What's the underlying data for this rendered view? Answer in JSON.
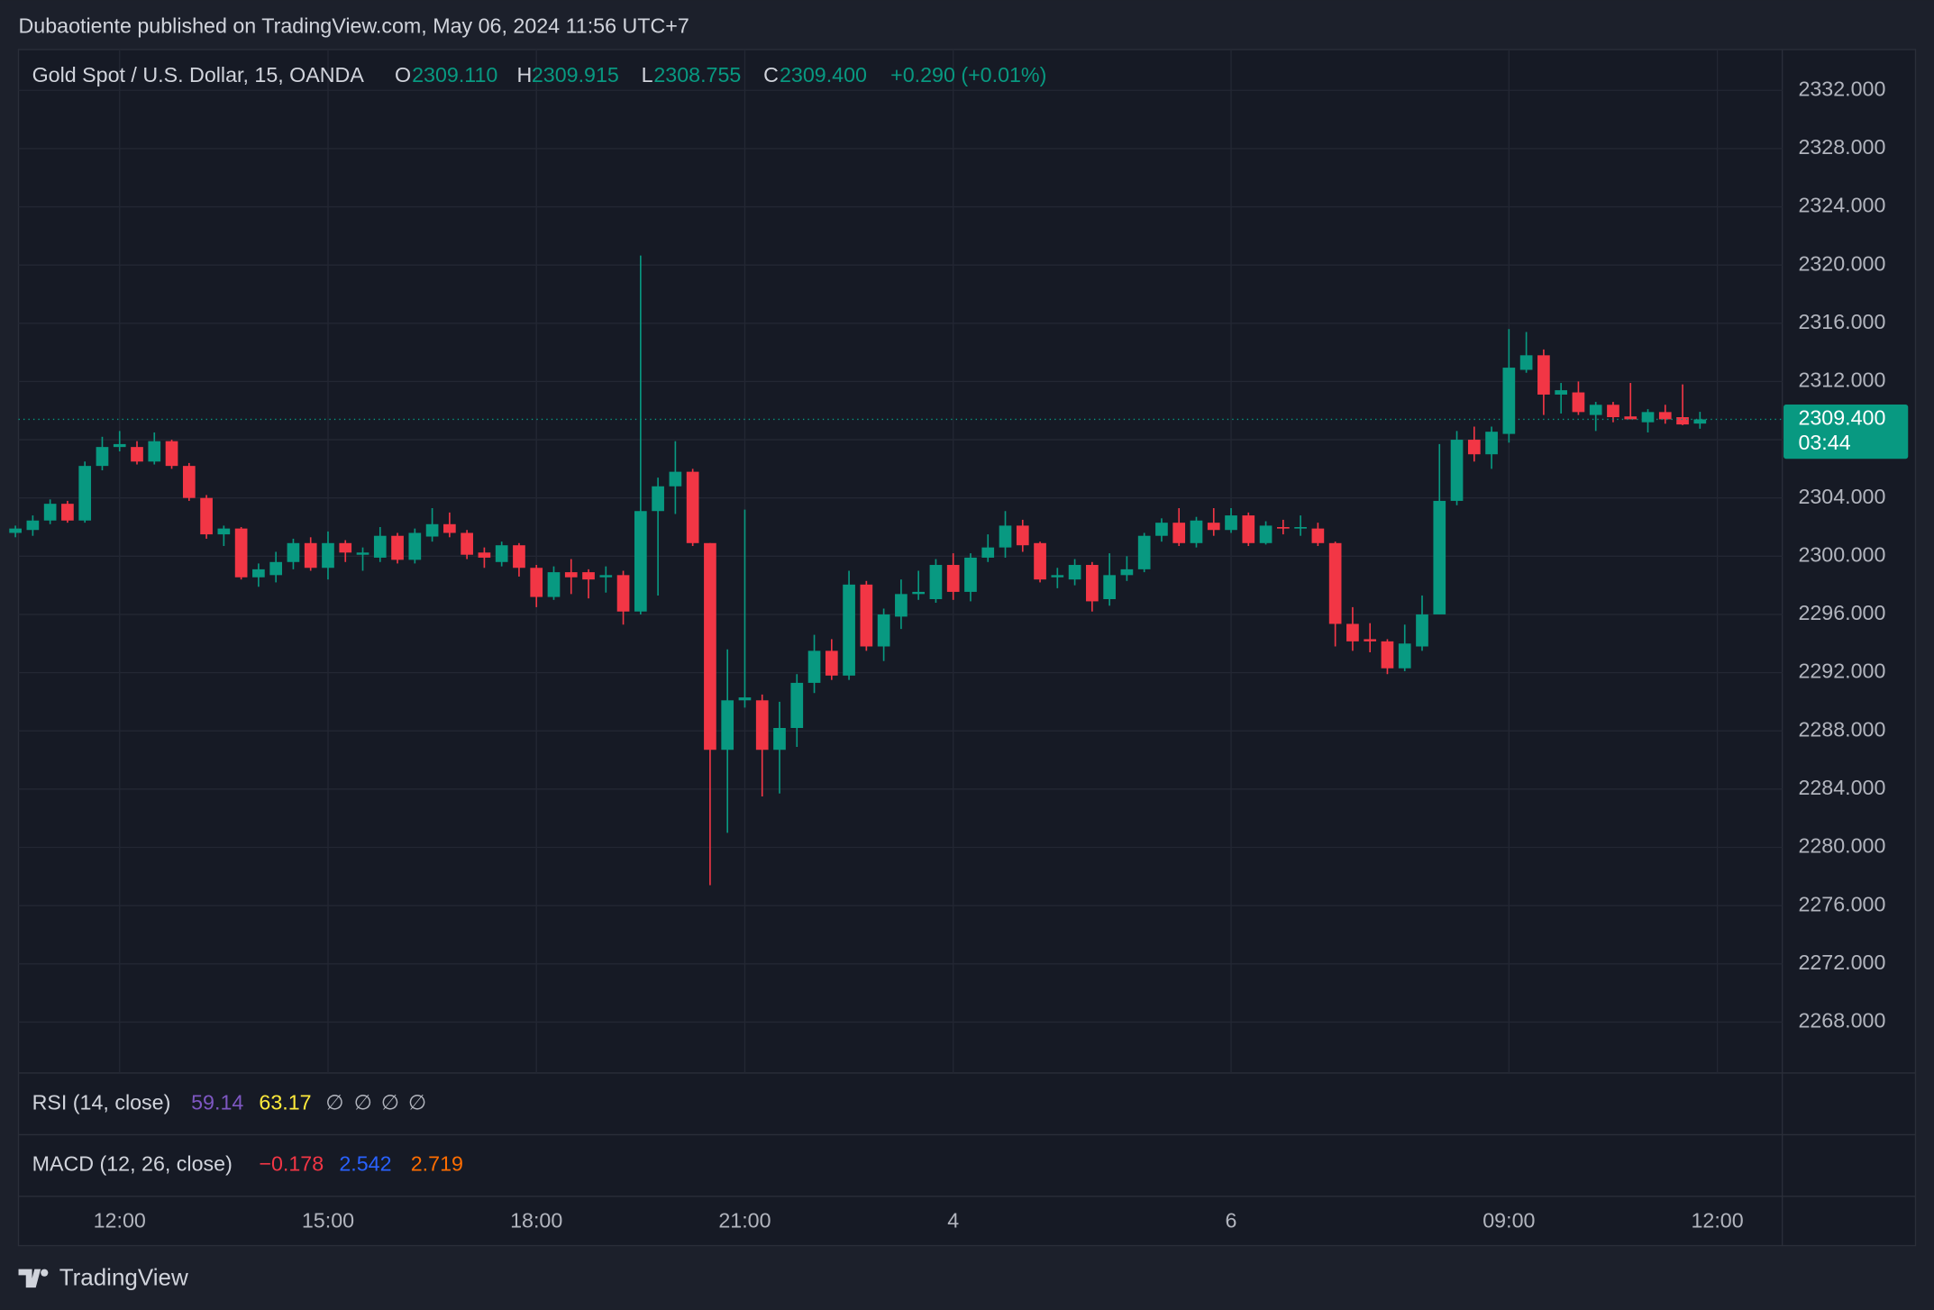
{
  "chart_data": {
    "type": "candlestick",
    "published": "Dubaotiente published on TradingView.com, May 06, 2024 11:56 UTC+7",
    "title": "Gold Spot / U.S. Dollar, 15, OANDA",
    "ohlc_legend": [
      {
        "label": "O",
        "value": "2309.110"
      },
      {
        "label": "H",
        "value": "2309.915"
      },
      {
        "label": "L",
        "value": "2308.755"
      },
      {
        "label": "C",
        "value": "2309.400"
      }
    ],
    "change": "+0.290 (+0.01%)",
    "up_color": "#089981",
    "down_color": "#f23645",
    "categories": [
      null,
      null,
      null,
      null,
      null,
      null,
      "12:00",
      null,
      null,
      null,
      null,
      null,
      null,
      null,
      null,
      null,
      null,
      null,
      "15:00",
      null,
      null,
      null,
      null,
      null,
      null,
      null,
      null,
      null,
      null,
      null,
      "18:00",
      null,
      null,
      null,
      null,
      null,
      null,
      null,
      null,
      null,
      null,
      null,
      "21:00",
      null,
      null,
      null,
      null,
      null,
      null,
      null,
      null,
      null,
      null,
      null,
      "4",
      null,
      null,
      null,
      null,
      null,
      null,
      null,
      null,
      null,
      null,
      null,
      null,
      null,
      null,
      null,
      "6",
      null,
      null,
      null,
      null,
      null,
      null,
      null,
      null,
      null,
      null,
      null,
      null,
      null,
      null,
      null,
      "09:00",
      null,
      null,
      null,
      null,
      null,
      null,
      null,
      null,
      null,
      null,
      null,
      "12:00"
    ],
    "open": [
      2301.6,
      2301.8,
      2302.45,
      2303.6,
      2302.45,
      2306.2,
      2307.5,
      2307.5,
      2306.5,
      2307.9,
      2306.2,
      2304.0,
      2301.5,
      2301.9,
      2298.55,
      2298.7,
      2299.6,
      2300.9,
      2299.2,
      2300.9,
      2300.1,
      2299.9,
      2301.4,
      2299.75,
      2301.35,
      2302.2,
      2301.6,
      2300.25,
      2299.6,
      2300.75,
      2299.2,
      2297.2,
      2298.9,
      2298.9,
      2298.55,
      2298.7,
      2296.2,
      2303.1,
      2304.8,
      2305.8,
      2300.9,
      2286.7,
      2290.1,
      2290.1,
      2286.7,
      2288.2,
      2291.3,
      2293.5,
      2291.8,
      2298.05,
      2293.8,
      2295.85,
      2297.4,
      2297.05,
      2299.4,
      2297.55,
      2299.9,
      2300.6,
      2302.1,
      2300.9,
      2298.55,
      2298.4,
      2299.4,
      2297.05,
      2298.7,
      2299.1,
      2301.4,
      2302.3,
      2300.9,
      2302.3,
      2301.8,
      2302.8,
      2300.9,
      2302.0,
      2301.9,
      2301.9,
      2300.9,
      2295.35,
      2294.3,
      2294.15,
      2292.3,
      2293.8,
      2296.0,
      2303.8,
      2308.0,
      2307.0,
      2308.4,
      2312.8,
      2313.8,
      2311.1,
      2311.25,
      2309.7,
      2310.4,
      2309.6,
      2309.2,
      2309.9,
      2309.55,
      2309.11,
      null
    ],
    "high": [
      2302.1,
      2302.8,
      2303.9,
      2303.8,
      2306.5,
      2308.2,
      2308.6,
      2307.9,
      2308.5,
      2308.0,
      2306.4,
      2304.2,
      2302.1,
      2302.0,
      2299.5,
      2300.3,
      2301.2,
      2301.3,
      2301.7,
      2301.1,
      2300.6,
      2302.0,
      2301.6,
      2301.9,
      2303.3,
      2303.0,
      2301.8,
      2300.6,
      2301.0,
      2300.9,
      2299.4,
      2299.3,
      2299.8,
      2299.1,
      2299.3,
      2299.0,
      2320.65,
      2305.4,
      2307.9,
      2306.0,
      2300.9,
      2293.6,
      2303.2,
      2290.5,
      2290.0,
      2291.9,
      2294.6,
      2294.3,
      2299.0,
      2298.3,
      2296.4,
      2298.4,
      2299.0,
      2299.8,
      2300.2,
      2300.2,
      2301.5,
      2303.1,
      2302.5,
      2301.0,
      2299.2,
      2299.8,
      2299.6,
      2300.2,
      2300.0,
      2301.6,
      2302.6,
      2303.3,
      2302.7,
      2303.3,
      2303.3,
      2303.0,
      2302.4,
      2302.5,
      2302.8,
      2302.3,
      2301.0,
      2296.5,
      2295.4,
      2294.3,
      2295.3,
      2297.3,
      2307.7,
      2308.6,
      2308.9,
      2308.9,
      2315.6,
      2315.4,
      2314.2,
      2311.9,
      2312.0,
      2310.6,
      2310.6,
      2311.9,
      2310.1,
      2310.4,
      2311.8,
      2309.915,
      null
    ],
    "low": [
      2301.3,
      2301.4,
      2302.2,
      2302.3,
      2302.3,
      2305.9,
      2307.2,
      2306.3,
      2306.3,
      2306.0,
      2303.8,
      2301.2,
      2300.7,
      2298.4,
      2297.9,
      2298.2,
      2299.1,
      2299.0,
      2298.4,
      2299.6,
      2299.0,
      2299.6,
      2299.5,
      2299.5,
      2301.0,
      2301.3,
      2299.8,
      2299.2,
      2299.3,
      2298.6,
      2296.5,
      2297.0,
      2297.4,
      2297.1,
      2297.5,
      2295.3,
      2296.0,
      2297.3,
      2302.9,
      2300.7,
      2277.4,
      2281.0,
      2289.6,
      2283.5,
      2283.7,
      2286.9,
      2290.6,
      2291.5,
      2291.5,
      2293.5,
      2292.8,
      2295.0,
      2297.0,
      2296.8,
      2297.0,
      2296.9,
      2299.6,
      2299.9,
      2300.3,
      2298.2,
      2297.8,
      2298.0,
      2296.2,
      2296.6,
      2298.3,
      2298.9,
      2301.0,
      2300.7,
      2300.6,
      2301.4,
      2301.6,
      2300.7,
      2300.8,
      2301.5,
      2301.4,
      2300.7,
      2293.8,
      2293.5,
      2293.4,
      2291.9,
      2292.1,
      2293.5,
      2296.0,
      2303.5,
      2306.5,
      2306.0,
      2307.8,
      2312.6,
      2309.7,
      2309.8,
      2309.7,
      2308.6,
      2309.2,
      2309.4,
      2308.5,
      2309.1,
      2309.0,
      2308.755,
      null
    ],
    "close": [
      2301.9,
      2302.45,
      2303.6,
      2302.45,
      2306.2,
      2307.5,
      2307.7,
      2306.5,
      2307.9,
      2306.2,
      2304.0,
      2301.5,
      2301.9,
      2298.55,
      2299.1,
      2299.6,
      2300.9,
      2299.2,
      2300.9,
      2300.25,
      2300.25,
      2301.4,
      2299.75,
      2301.6,
      2302.2,
      2301.6,
      2300.1,
      2299.9,
      2300.75,
      2299.2,
      2297.2,
      2298.9,
      2298.55,
      2298.4,
      2298.7,
      2296.2,
      2303.1,
      2304.8,
      2305.8,
      2300.9,
      2286.7,
      2290.1,
      2290.3,
      2286.7,
      2288.2,
      2291.3,
      2293.5,
      2291.8,
      2298.05,
      2293.8,
      2296.0,
      2297.4,
      2297.55,
      2299.4,
      2297.55,
      2299.9,
      2300.6,
      2302.1,
      2300.75,
      2298.4,
      2298.7,
      2299.4,
      2296.9,
      2298.7,
      2299.1,
      2301.4,
      2302.3,
      2300.9,
      2302.45,
      2301.8,
      2302.8,
      2300.9,
      2302.1,
      2301.9,
      2302.0,
      2300.9,
      2295.35,
      2294.15,
      2294.15,
      2292.3,
      2294.0,
      2296.0,
      2303.8,
      2308.0,
      2307.0,
      2308.55,
      2312.95,
      2313.8,
      2311.1,
      2311.4,
      2309.9,
      2310.4,
      2309.55,
      2309.4,
      2309.9,
      2309.4,
      2309.05,
      2309.4,
      null
    ],
    "ylim": [
      2264.5,
      2334.8
    ],
    "yticks": [
      {
        "value": 2268,
        "label": "2268.000"
      },
      {
        "value": 2272,
        "label": "2272.000"
      },
      {
        "value": 2276,
        "label": "2276.000"
      },
      {
        "value": 2280,
        "label": "2280.000"
      },
      {
        "value": 2284,
        "label": "2284.000"
      },
      {
        "value": 2288,
        "label": "2288.000"
      },
      {
        "value": 2292,
        "label": "2292.000"
      },
      {
        "value": 2296,
        "label": "2296.000"
      },
      {
        "value": 2300,
        "label": "2300.000"
      },
      {
        "value": 2304,
        "label": "2304.000"
      },
      {
        "value": 2308,
        "label": "2308.000"
      },
      {
        "value": 2312,
        "label": "2312.000"
      },
      {
        "value": 2316,
        "label": "2316.000"
      },
      {
        "value": 2320,
        "label": "2320.000"
      },
      {
        "value": 2324,
        "label": "2324.000"
      },
      {
        "value": 2328,
        "label": "2328.000"
      },
      {
        "value": 2332,
        "label": "2332.000"
      }
    ],
    "grid": true,
    "last_price": {
      "value": 2309.4,
      "label": "2309.400"
    },
    "countdown": "03:44",
    "rsi": {
      "label": "RSI (14, close)",
      "values": [
        "59.14",
        "63.17"
      ],
      "empty": [
        "∅",
        "∅",
        "∅",
        "∅"
      ]
    },
    "macd": {
      "label": "MACD (12, 26, close)",
      "values": [
        "−0.178",
        "2.542",
        "2.719"
      ]
    },
    "brand": "TradingView"
  }
}
